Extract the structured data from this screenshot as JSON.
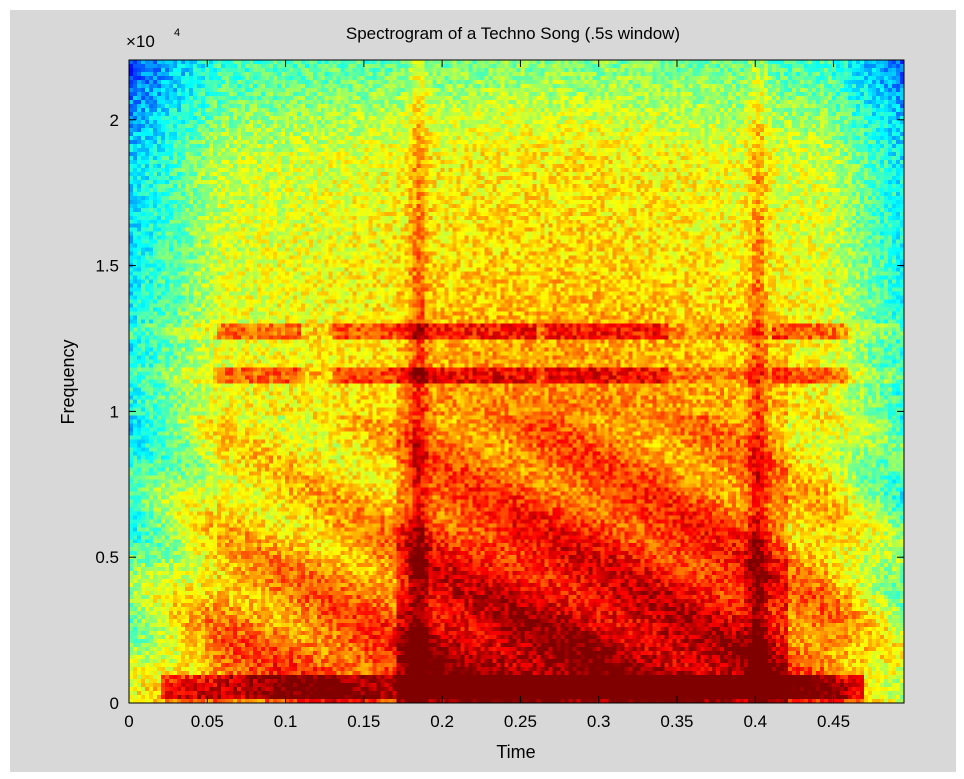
{
  "chart_data": {
    "type": "heatmap",
    "title": "Spectrogram of a Techno Song (.5s window)",
    "xlabel": "Time",
    "ylabel": "Frequency",
    "y_multiplier": "×10",
    "y_multiplier_exponent": "4",
    "xlim": [
      0,
      0.495
    ],
    "ylim": [
      0,
      22050
    ],
    "x_ticks": [
      0,
      0.05,
      0.1,
      0.15,
      0.2,
      0.25,
      0.3,
      0.35,
      0.4,
      0.45
    ],
    "x_tick_labels": [
      "0",
      "0.05",
      "0.1",
      "0.15",
      "0.2",
      "0.25",
      "0.3",
      "0.35",
      "0.4",
      "0.45"
    ],
    "y_ticks": [
      0,
      5000,
      10000,
      15000,
      20000
    ],
    "y_tick_labels": [
      "0",
      "0.5",
      "1",
      "1.5",
      "2"
    ],
    "colormap": "jet",
    "colors": {
      "figure_bg": "#d8d8d8",
      "axes_border": "#000000"
    },
    "features": {
      "vertical_transients_time": [
        0.185,
        0.402
      ],
      "harmonic_bands_freq": [
        11200,
        12700
      ],
      "low_freq_band": [
        200,
        900
      ],
      "band_segments_time": [
        [
          0.055,
          0.11
        ],
        [
          0.13,
          0.26
        ],
        [
          0.265,
          0.345
        ],
        [
          0.41,
          0.46
        ]
      ],
      "louder_region_time": [
        0.17,
        0.42
      ]
    }
  }
}
